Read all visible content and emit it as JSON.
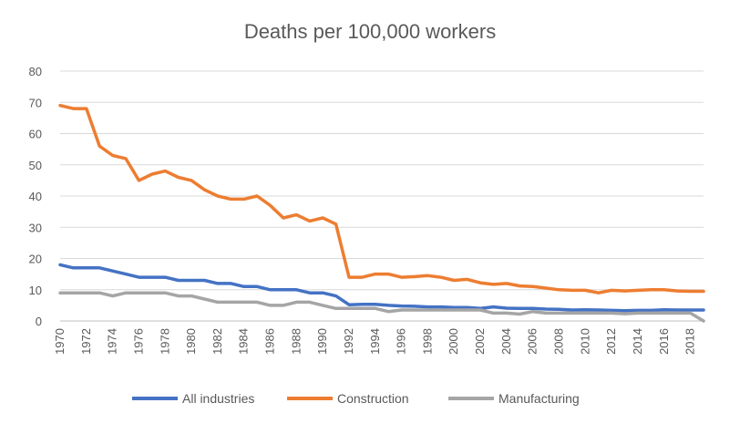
{
  "chart_data": {
    "type": "line",
    "title": "Deaths per 100,000 workers",
    "xlabel": "",
    "ylabel": "",
    "ylim": [
      0,
      80
    ],
    "yticks": [
      0,
      10,
      20,
      30,
      40,
      50,
      60,
      70,
      80
    ],
    "xticks": [
      1970,
      1972,
      1974,
      1976,
      1978,
      1980,
      1982,
      1984,
      1986,
      1988,
      1990,
      1992,
      1994,
      1996,
      1998,
      2000,
      2002,
      2004,
      2006,
      2008,
      2010,
      2012,
      2014,
      2016,
      2018
    ],
    "grid": true,
    "legend_position": "bottom",
    "x": [
      1970,
      1971,
      1972,
      1973,
      1974,
      1975,
      1976,
      1977,
      1978,
      1979,
      1980,
      1981,
      1982,
      1983,
      1984,
      1985,
      1986,
      1987,
      1988,
      1989,
      1990,
      1991,
      1992,
      1993,
      1994,
      1995,
      1996,
      1997,
      1998,
      1999,
      2000,
      2001,
      2002,
      2003,
      2004,
      2005,
      2006,
      2007,
      2008,
      2009,
      2010,
      2011,
      2012,
      2013,
      2014,
      2015,
      2016,
      2017,
      2018,
      2019
    ],
    "series": [
      {
        "name": "All industries",
        "color": "#4472C4",
        "values": [
          18,
          17,
          17,
          17,
          16,
          15,
          14,
          14,
          14,
          13,
          13,
          13,
          12,
          12,
          11,
          11,
          10,
          10,
          10,
          9,
          9,
          8,
          5.2,
          5.3,
          5.3,
          5,
          4.8,
          4.7,
          4.5,
          4.5,
          4.3,
          4.3,
          4,
          4.5,
          4.1,
          4,
          4,
          3.8,
          3.7,
          3.5,
          3.6,
          3.5,
          3.4,
          3.3,
          3.4,
          3.4,
          3.6,
          3.5,
          3.5,
          3.5
        ]
      },
      {
        "name": "Construction",
        "color": "#ED7D31",
        "values": [
          69,
          68,
          68,
          56,
          53,
          52,
          45,
          47,
          48,
          46,
          45,
          42,
          40,
          39,
          39,
          40,
          37,
          33,
          34,
          32,
          33,
          31,
          14,
          14,
          15,
          15,
          14,
          14.2,
          14.5,
          14,
          13,
          13.3,
          12.2,
          11.7,
          12,
          11.2,
          11,
          10.5,
          10,
          9.8,
          9.8,
          9,
          9.8,
          9.6,
          9.8,
          10,
          10,
          9.6,
          9.5,
          9.5
        ]
      },
      {
        "name": "Manufacturing",
        "color": "#A5A5A5",
        "values": [
          9,
          9,
          9,
          9,
          8,
          9,
          9,
          9,
          9,
          8,
          8,
          7,
          6,
          6,
          6,
          6,
          5,
          5,
          6,
          6,
          5,
          4,
          4,
          4,
          4,
          3,
          3.5,
          3.5,
          3.5,
          3.5,
          3.5,
          3.5,
          3.5,
          2.5,
          2.5,
          2.2,
          3,
          2.5,
          2.5,
          2.5,
          2.5,
          2.5,
          2.5,
          2.3,
          2.5,
          2.5,
          2.5,
          2.5,
          2.5,
          0
        ]
      }
    ]
  }
}
